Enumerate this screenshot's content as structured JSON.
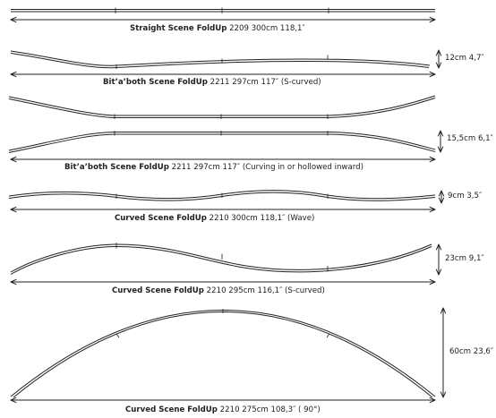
{
  "items": [
    {
      "name": "Straight Scene FoldUp",
      "rest": " 2209 300cm 118,1″",
      "height": ""
    },
    {
      "name": "Bit’a’both Scene FoldUp",
      "rest": " 2211 297cm 117″ (S-curved)",
      "height": "12cm 4,7″"
    },
    {
      "name": "Bit’a’both Scene FoldUp",
      "rest": " 2211 297cm 117″ (Curving in or hollowed inward)",
      "height": "15,5cm 6,1″"
    },
    {
      "name": "Curved Scene FoldUp",
      "rest": " 2210  300cm 118,1″ (Wave)",
      "height": "9cm 3,5″"
    },
    {
      "name": "Curved Scene FoldUp",
      "rest": " 2210  295cm 116,1″ (S-curved)",
      "height": "23cm 9,1″"
    },
    {
      "name": "Curved Scene FoldUp",
      "rest": " 2210  275cm 108,3″ ( 90°)",
      "height": "60cm 23,6″"
    }
  ],
  "colors": {
    "line": "#222222"
  }
}
